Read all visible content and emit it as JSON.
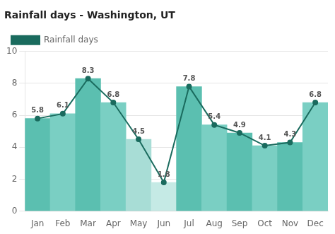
{
  "chart_data": {
    "type": "bar",
    "title": "Rainfall days - Washington, UT",
    "categories": [
      "Jan",
      "Feb",
      "Mar",
      "Apr",
      "May",
      "Jun",
      "Jul",
      "Aug",
      "Sep",
      "Oct",
      "Nov",
      "Dec"
    ],
    "series": [
      {
        "type": "bar",
        "colors": [
          "#5bbfb0",
          "#7acfc3",
          "#5bbfb0",
          "#7acfc3",
          "#a8ddd6",
          "#c5eae5",
          "#5bbfb0",
          "#7acfc3",
          "#5bbfb0",
          "#7acfc3",
          "#5bbfb0",
          "#7acfc3"
        ],
        "values": [
          5.8,
          6.1,
          8.3,
          6.8,
          4.5,
          1.8,
          7.8,
          5.4,
          4.9,
          4.1,
          4.3,
          6.8
        ]
      },
      {
        "name": "Rainfall days",
        "type": "line",
        "color": "#1a6b5e",
        "marker": "circle",
        "data_labels": true,
        "values": [
          5.8,
          6.1,
          8.3,
          6.8,
          4.5,
          1.8,
          7.8,
          5.4,
          4.9,
          4.1,
          4.3,
          6.8
        ]
      }
    ],
    "ylim": [
      0,
      10
    ],
    "yticks": [
      0,
      2,
      4,
      6,
      8,
      10
    ],
    "grid": true,
    "legend": "top"
  }
}
